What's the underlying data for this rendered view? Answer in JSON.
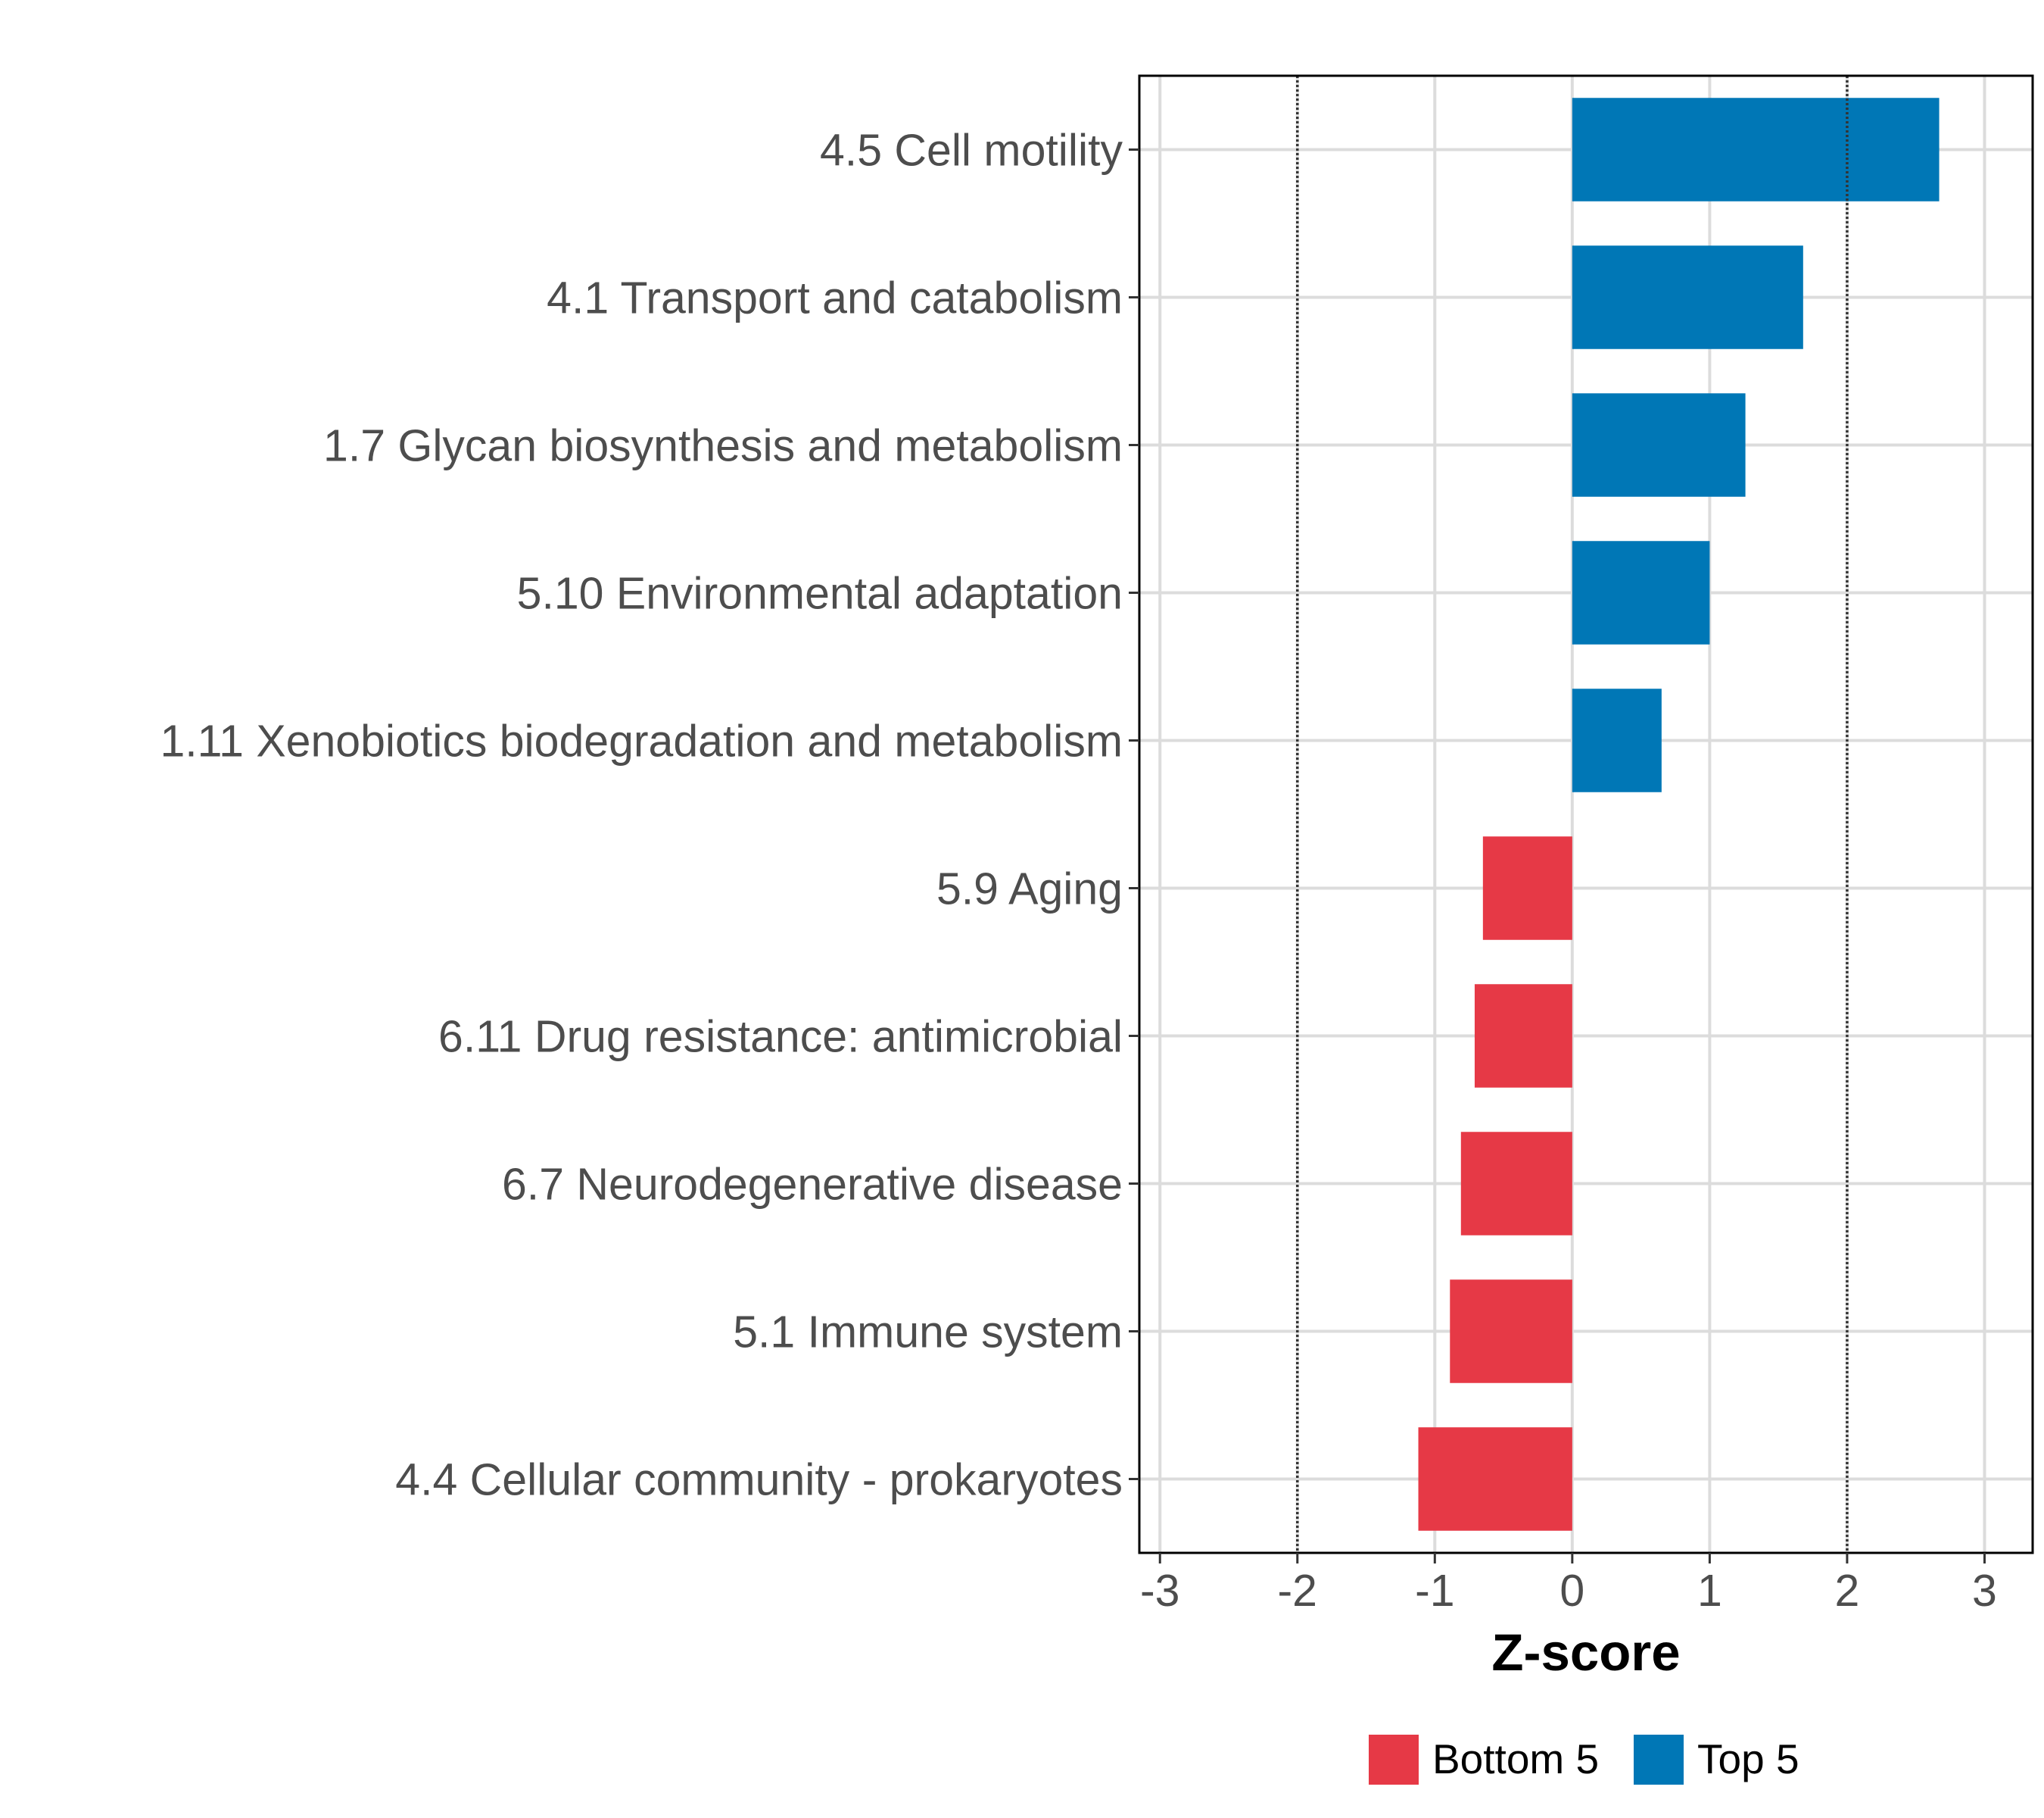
{
  "chart_data": {
    "type": "bar",
    "orientation": "horizontal",
    "title": "",
    "xlabel": "Z-score",
    "ylabel": "",
    "xlim": [
      -3.15,
      3.35
    ],
    "xticks": [
      -3,
      -2,
      -1,
      0,
      1,
      2,
      3
    ],
    "xtick_labels": [
      "-3",
      "-2",
      "-1",
      "0",
      "1",
      "2",
      "3"
    ],
    "reference_lines": [
      -2,
      2
    ],
    "grid": true,
    "legend_position": "bottom",
    "categories": [
      "4.5 Cell motility",
      "4.1 Transport and catabolism",
      "1.7 Glycan biosynthesis and metabolism",
      "5.10 Environmental adaptation",
      "1.11 Xenobiotics biodegradation and metabolism",
      "5.9 Aging",
      "6.11 Drug resistance: antimicrobial",
      "6.7 Neurodegenerative disease",
      "5.1 Immune system",
      "4.4 Cellular community - prokaryotes"
    ],
    "values": [
      2.67,
      1.68,
      1.26,
      1.0,
      0.65,
      -0.65,
      -0.71,
      -0.81,
      -0.89,
      -1.12
    ],
    "groups": [
      "Top 5",
      "Top 5",
      "Top 5",
      "Top 5",
      "Top 5",
      "Bottom 5",
      "Bottom 5",
      "Bottom 5",
      "Bottom 5",
      "Bottom 5"
    ],
    "legend": [
      {
        "name": "Bottom 5",
        "color": "#e63946"
      },
      {
        "name": "Top 5",
        "color": "#0077b6"
      }
    ]
  }
}
